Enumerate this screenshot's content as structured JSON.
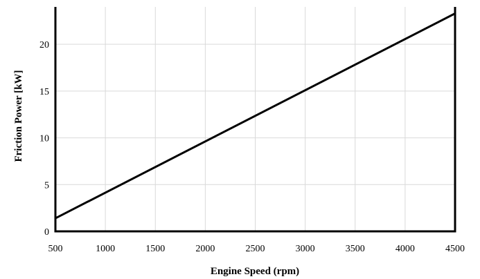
{
  "chart_data": {
    "type": "line",
    "title": "",
    "xlabel": "Engine Speed (rpm)",
    "ylabel": "Friction Power [kW]",
    "xlim": [
      500,
      4500
    ],
    "ylim": [
      0,
      24
    ],
    "xticks": [
      500,
      1000,
      1500,
      2000,
      2500,
      3000,
      3500,
      4000,
      4500
    ],
    "yticks": [
      0,
      5,
      10,
      15,
      20
    ],
    "grid": true,
    "legend": "none",
    "series": [
      {
        "x": [
          500,
          4500
        ],
        "y": [
          1.4,
          23.3
        ],
        "color": "#000000"
      }
    ]
  }
}
